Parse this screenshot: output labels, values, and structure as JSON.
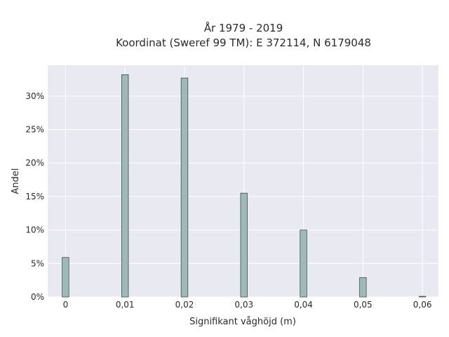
{
  "chart_data": {
    "type": "bar",
    "title": "År 1979 - 2019",
    "subtitle": "Koordinat (Sweref 99 TM): E 372114, N 6179048",
    "xlabel": "Signifikant våghöjd (m)",
    "ylabel": "Andel",
    "x": [
      0,
      0.01,
      0.02,
      0.03,
      0.04,
      0.05,
      0.06
    ],
    "x_tick_labels": [
      "0",
      "0,01",
      "0,02",
      "0,03",
      "0,04",
      "0,05",
      "0,06"
    ],
    "values": [
      5.9,
      33.2,
      32.7,
      15.5,
      10.0,
      2.9,
      0.1
    ],
    "y_tick_values": [
      0,
      5,
      10,
      15,
      20,
      25,
      30
    ],
    "y_tick_labels": [
      "0%",
      "5%",
      "10%",
      "15%",
      "20%",
      "25%",
      "30%"
    ],
    "xlim": [
      -0.003,
      0.0627
    ],
    "ylim": [
      0,
      34.6
    ],
    "grid": true,
    "bar_color": "#9fb8b8",
    "bar_edge_color": "#3f4f4f",
    "plot_background": "#e9e9f1"
  }
}
